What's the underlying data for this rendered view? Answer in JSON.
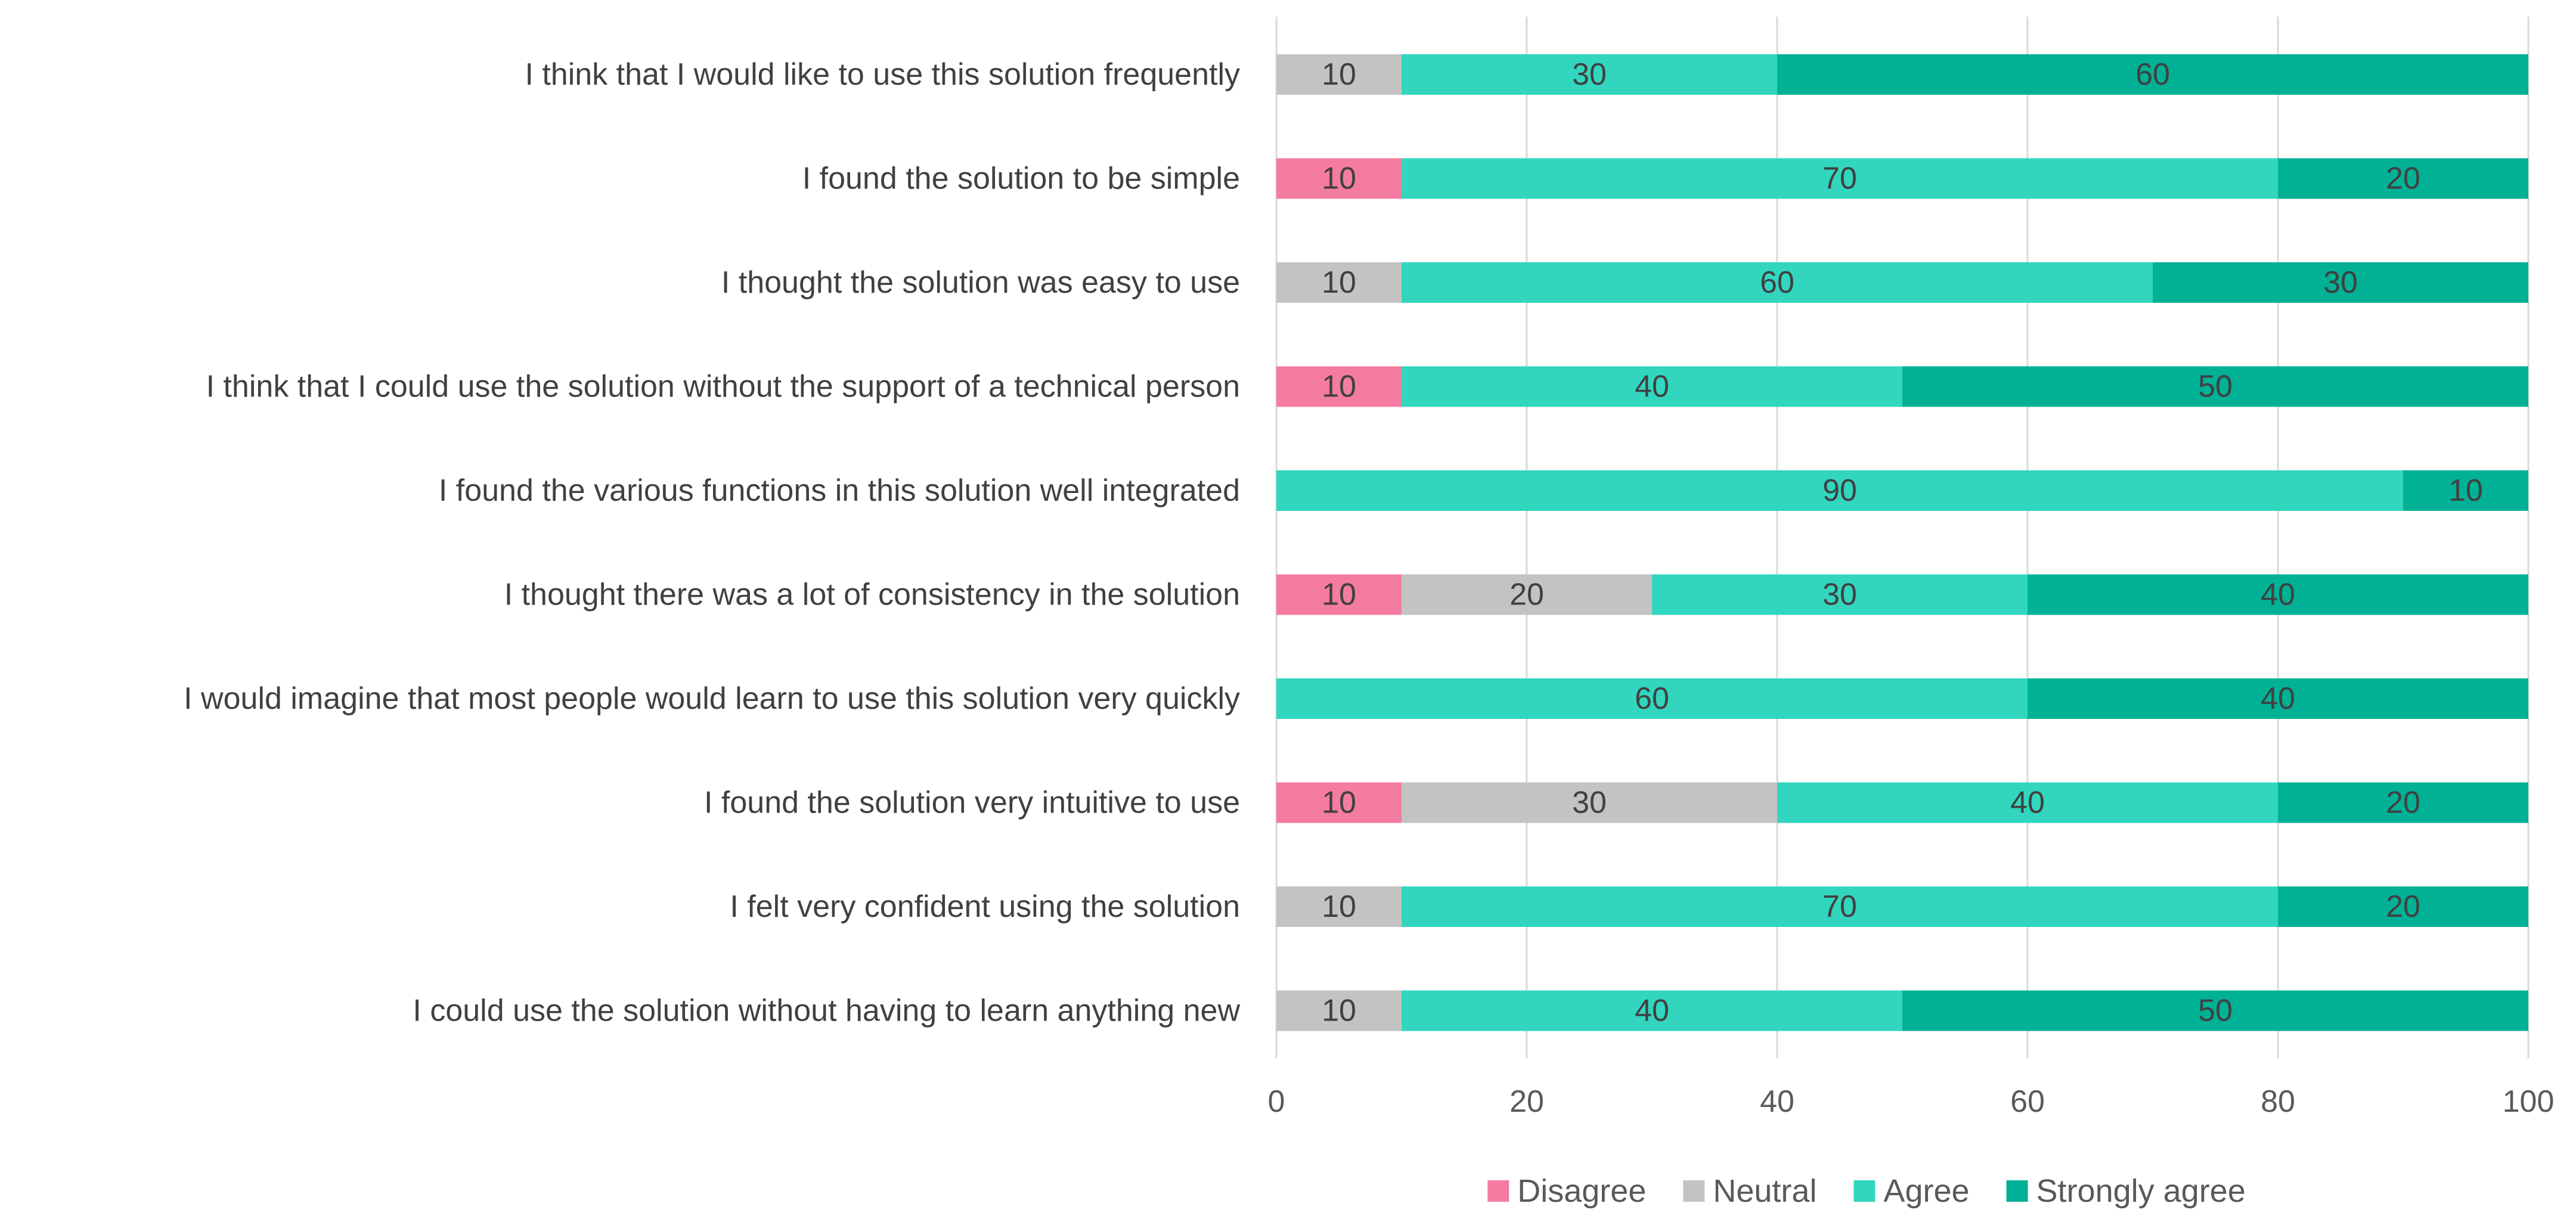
{
  "chart_data": {
    "type": "bar",
    "orientation": "horizontal",
    "stacked": true,
    "title": "",
    "xlabel": "",
    "ylabel": "",
    "xlim": [
      0,
      100
    ],
    "x_ticks": [
      "0",
      "20",
      "40",
      "60",
      "80",
      "100"
    ],
    "grid": true,
    "legend_position": "bottom-center",
    "categories": [
      "I think that I would like to use this solution frequently",
      "I found the solution to be simple",
      "I thought the solution was easy to use",
      "I think that I could use the solution without the support of a technical person",
      "I found the various functions in this solution well integrated",
      "I thought there was a lot of consistency in the solution",
      "I would imagine that most people would learn to use this solution very quickly",
      "I found the solution very intuitive to use",
      "I felt very confident using the solution",
      "I could use the solution without having to learn anything new"
    ],
    "series": [
      {
        "name": "Disagree",
        "color": "#F47CA0",
        "label_color": "#404040",
        "values": [
          0,
          10,
          0,
          10,
          0,
          10,
          0,
          10,
          0,
          0
        ]
      },
      {
        "name": "Neutral",
        "color": "#C3C3C3",
        "label_color": "#404040",
        "values": [
          10,
          0,
          10,
          0,
          0,
          20,
          0,
          30,
          10,
          10
        ]
      },
      {
        "name": "Agree",
        "color": "#32D6BE",
        "label_color": "#404040",
        "values": [
          30,
          70,
          60,
          40,
          90,
          30,
          60,
          40,
          70,
          40
        ]
      },
      {
        "name": "Strongly agree",
        "color": "#00B195",
        "label_color": "#404040",
        "values": [
          60,
          20,
          30,
          50,
          10,
          40,
          40,
          20,
          20,
          50
        ]
      }
    ],
    "colors": {
      "category_text": "#404040",
      "tick_text": "#595959",
      "gridline": "#D9D9D9"
    }
  }
}
